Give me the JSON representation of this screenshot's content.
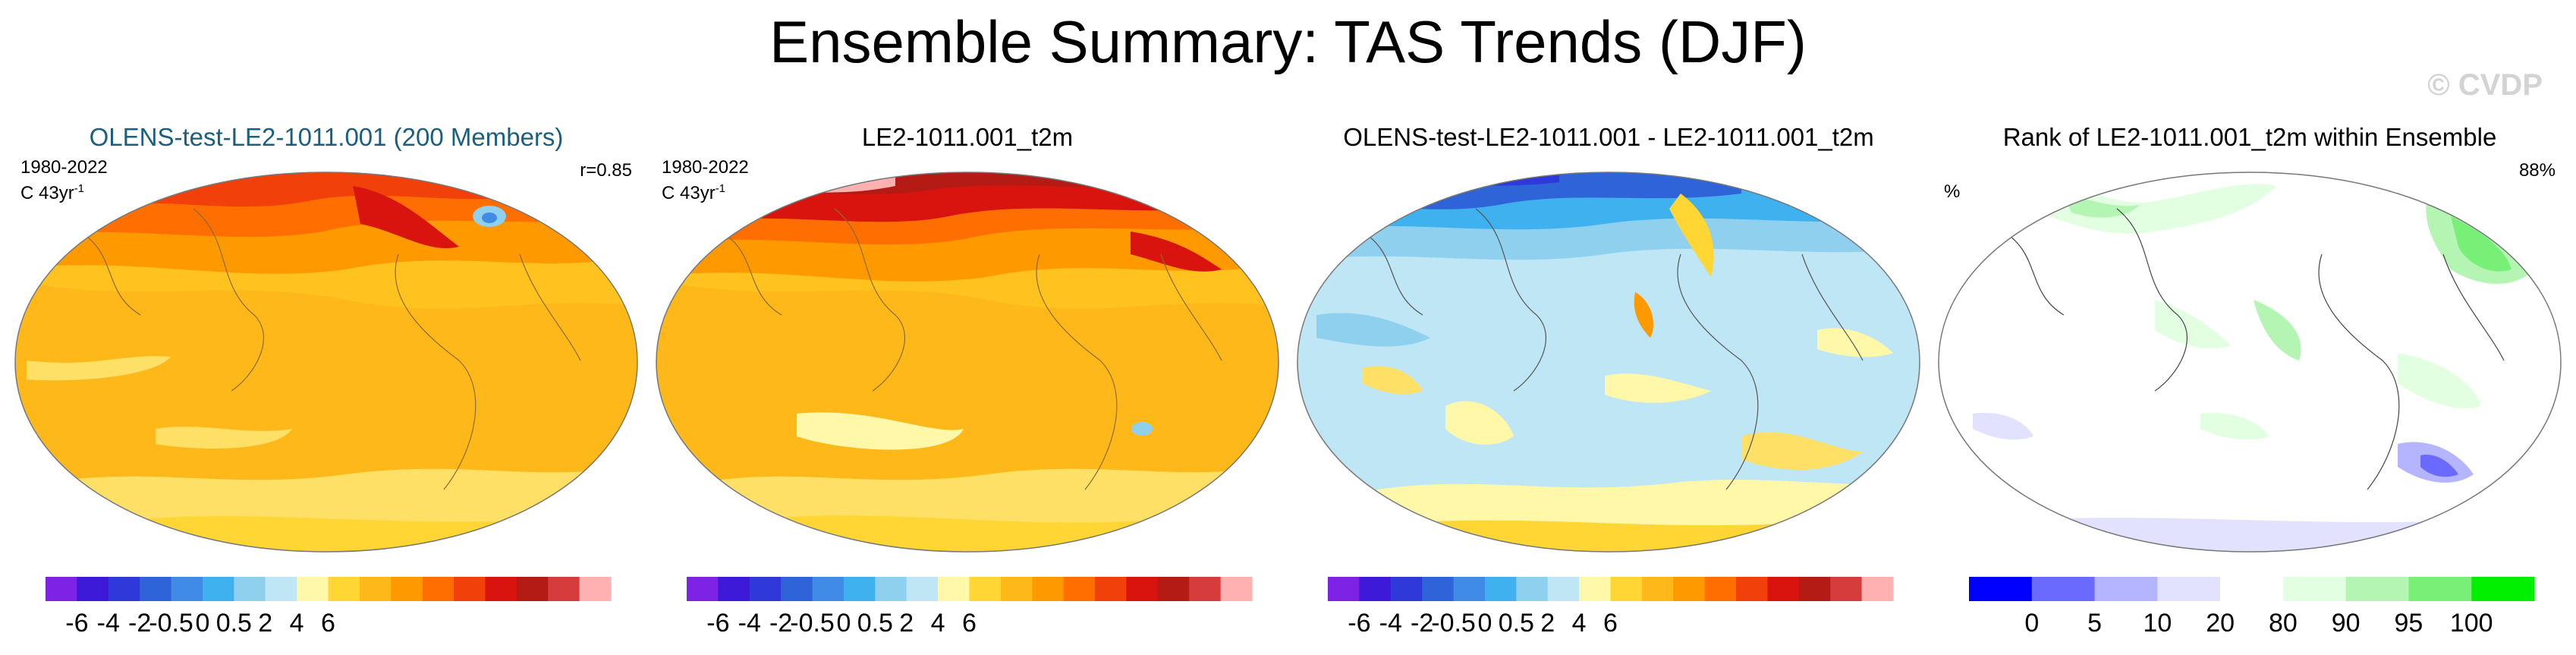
{
  "title": "Ensemble Summary: TAS Trends (DJF)",
  "watermark": "© CVDP",
  "panels": [
    {
      "title": "OLENS-test-LE2-1011.001 (200 Members)",
      "period": "1980-2022",
      "units": "C 43yr",
      "units_exp": "-1",
      "right_label": "r=0.85",
      "colormap": "trend"
    },
    {
      "title": "LE2-1011.001_t2m",
      "period": "1980-2022",
      "units": "C 43yr",
      "units_exp": "-1",
      "right_label": "",
      "colormap": "trend"
    },
    {
      "title": "OLENS-test-LE2-1011.001 - LE2-1011.001_t2m",
      "period": "",
      "units": "",
      "units_exp": "",
      "right_label": "",
      "colormap": "diff"
    },
    {
      "title": "Rank of LE2-1011.001_t2m within Ensemble",
      "period": "",
      "units": "%",
      "units_exp": "",
      "right_label": "88%",
      "colormap": "rank"
    }
  ],
  "colorbars": {
    "trend": {
      "colors": [
        "#7e22e6",
        "#3d1ad8",
        "#2f38d8",
        "#2f63d8",
        "#3f8be6",
        "#3fb1ef",
        "#8fd0ef",
        "#bfe6f5",
        "#fff8a8",
        "#ffd633",
        "#ffb81a",
        "#ff9900",
        "#ff6e00",
        "#f2400a",
        "#d9140f",
        "#b31b14",
        "#d63c3c",
        "#ffb0b0"
      ],
      "ticks": [
        "-6",
        "-4",
        "-2",
        "-0.5",
        "0",
        "0.5",
        "2",
        "4",
        "6"
      ]
    },
    "rank": {
      "colors": [
        "#0000ff",
        "#6a6aff",
        "#b4b4ff",
        "#e2e2ff",
        "#ffffff",
        "#e2ffe2",
        "#b4f5b4",
        "#78f078",
        "#00f000"
      ],
      "ticks": [
        "0",
        "5",
        "10",
        "20",
        "80",
        "90",
        "95",
        "100"
      ]
    }
  }
}
